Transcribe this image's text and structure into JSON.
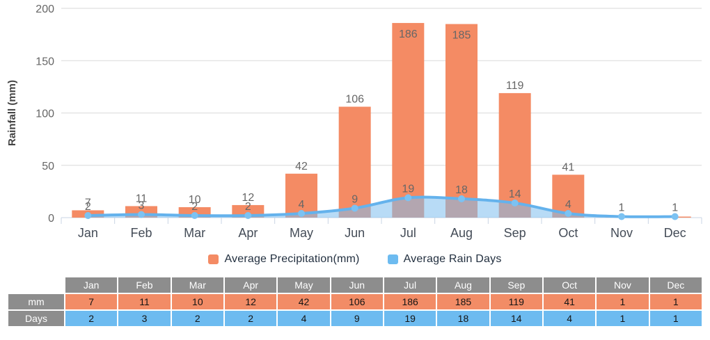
{
  "chart_data": {
    "type": "bar",
    "title": "",
    "xlabel": "",
    "ylabel": "Rainfall (mm)",
    "categories": [
      "Jan",
      "Feb",
      "Mar",
      "Apr",
      "May",
      "Jun",
      "Jul",
      "Aug",
      "Sep",
      "Oct",
      "Nov",
      "Dec"
    ],
    "series": [
      {
        "name": "Average Precipitation(mm)",
        "type": "column",
        "color": "#F48B64",
        "values": [
          7,
          11,
          10,
          12,
          42,
          106,
          186,
          185,
          119,
          41,
          1,
          1
        ]
      },
      {
        "name": "Average Rain Days",
        "type": "area-spline",
        "color": "#64B2EC",
        "marker_color": "#7CC2F2",
        "fill_color": "rgba(126,189,238,0.55)",
        "values": [
          2,
          3,
          2,
          2,
          4,
          9,
          19,
          18,
          14,
          4,
          1,
          1
        ]
      }
    ],
    "ylim": [
      0,
      200
    ],
    "yticks": [
      0,
      50,
      100,
      150,
      200
    ],
    "grid": true,
    "grid_color": "#D9D9D9",
    "axis_color": "#C8D4E4",
    "tick_label_color": "#666666",
    "value_label_color": "#666666",
    "month_label_color": "#444C57",
    "legend_position": "bottom-center"
  },
  "legend": {
    "items": [
      {
        "id": "precipitation",
        "label": "Average Precipitation(mm)",
        "color": "#F48B64"
      },
      {
        "id": "rain-days",
        "label": "Average Rain Days",
        "color": "#6DBBF0"
      }
    ]
  },
  "table": {
    "corner_label": "",
    "header_color": "#8D8D8D",
    "columns": [
      "Jan",
      "Feb",
      "Mar",
      "Apr",
      "May",
      "Jun",
      "Jul",
      "Aug",
      "Sep",
      "Oct",
      "Nov",
      "Dec"
    ],
    "rows": [
      {
        "label": "mm",
        "color": "#F28C66",
        "values": [
          "7",
          "11",
          "10",
          "12",
          "42",
          "106",
          "186",
          "185",
          "119",
          "41",
          "1",
          "1"
        ]
      },
      {
        "label": "Days",
        "color": "#6DBBF0",
        "values": [
          "2",
          "3",
          "2",
          "2",
          "4",
          "9",
          "19",
          "18",
          "14",
          "4",
          "1",
          "1"
        ]
      }
    ]
  }
}
